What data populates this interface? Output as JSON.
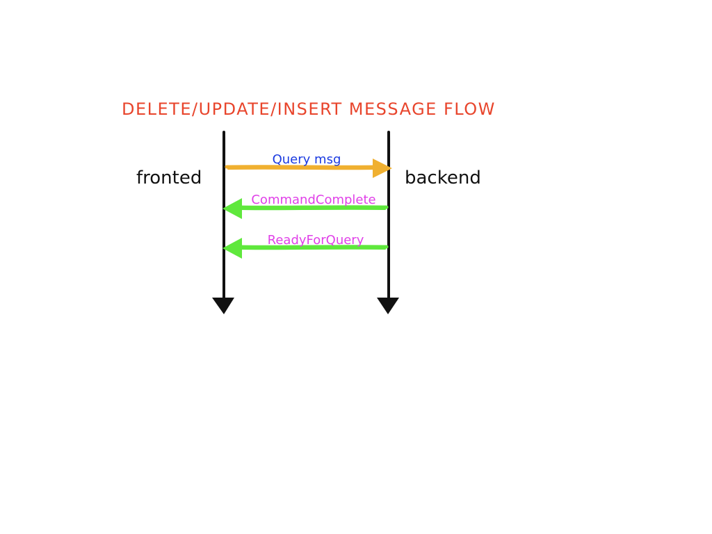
{
  "diagram": {
    "title": "DELETE/UPDATE/INSERT MESSAGE FLOW",
    "actors": {
      "frontend": "fronted",
      "backend": "backend"
    },
    "messages": [
      {
        "label": "Query msg",
        "direction": "frontend-to-backend",
        "arrow_color": "#f0b030",
        "label_color": "#1a3ae0"
      },
      {
        "label": "CommandComplete",
        "direction": "backend-to-frontend",
        "arrow_color": "#5fe83c",
        "label_color": "#e040e8"
      },
      {
        "label": "ReadyForQuery",
        "direction": "backend-to-frontend",
        "arrow_color": "#5fe83c",
        "label_color": "#e040e8"
      }
    ],
    "colors": {
      "title": "#e8452c",
      "lifeline": "#111111",
      "actor_text": "#111111"
    }
  }
}
